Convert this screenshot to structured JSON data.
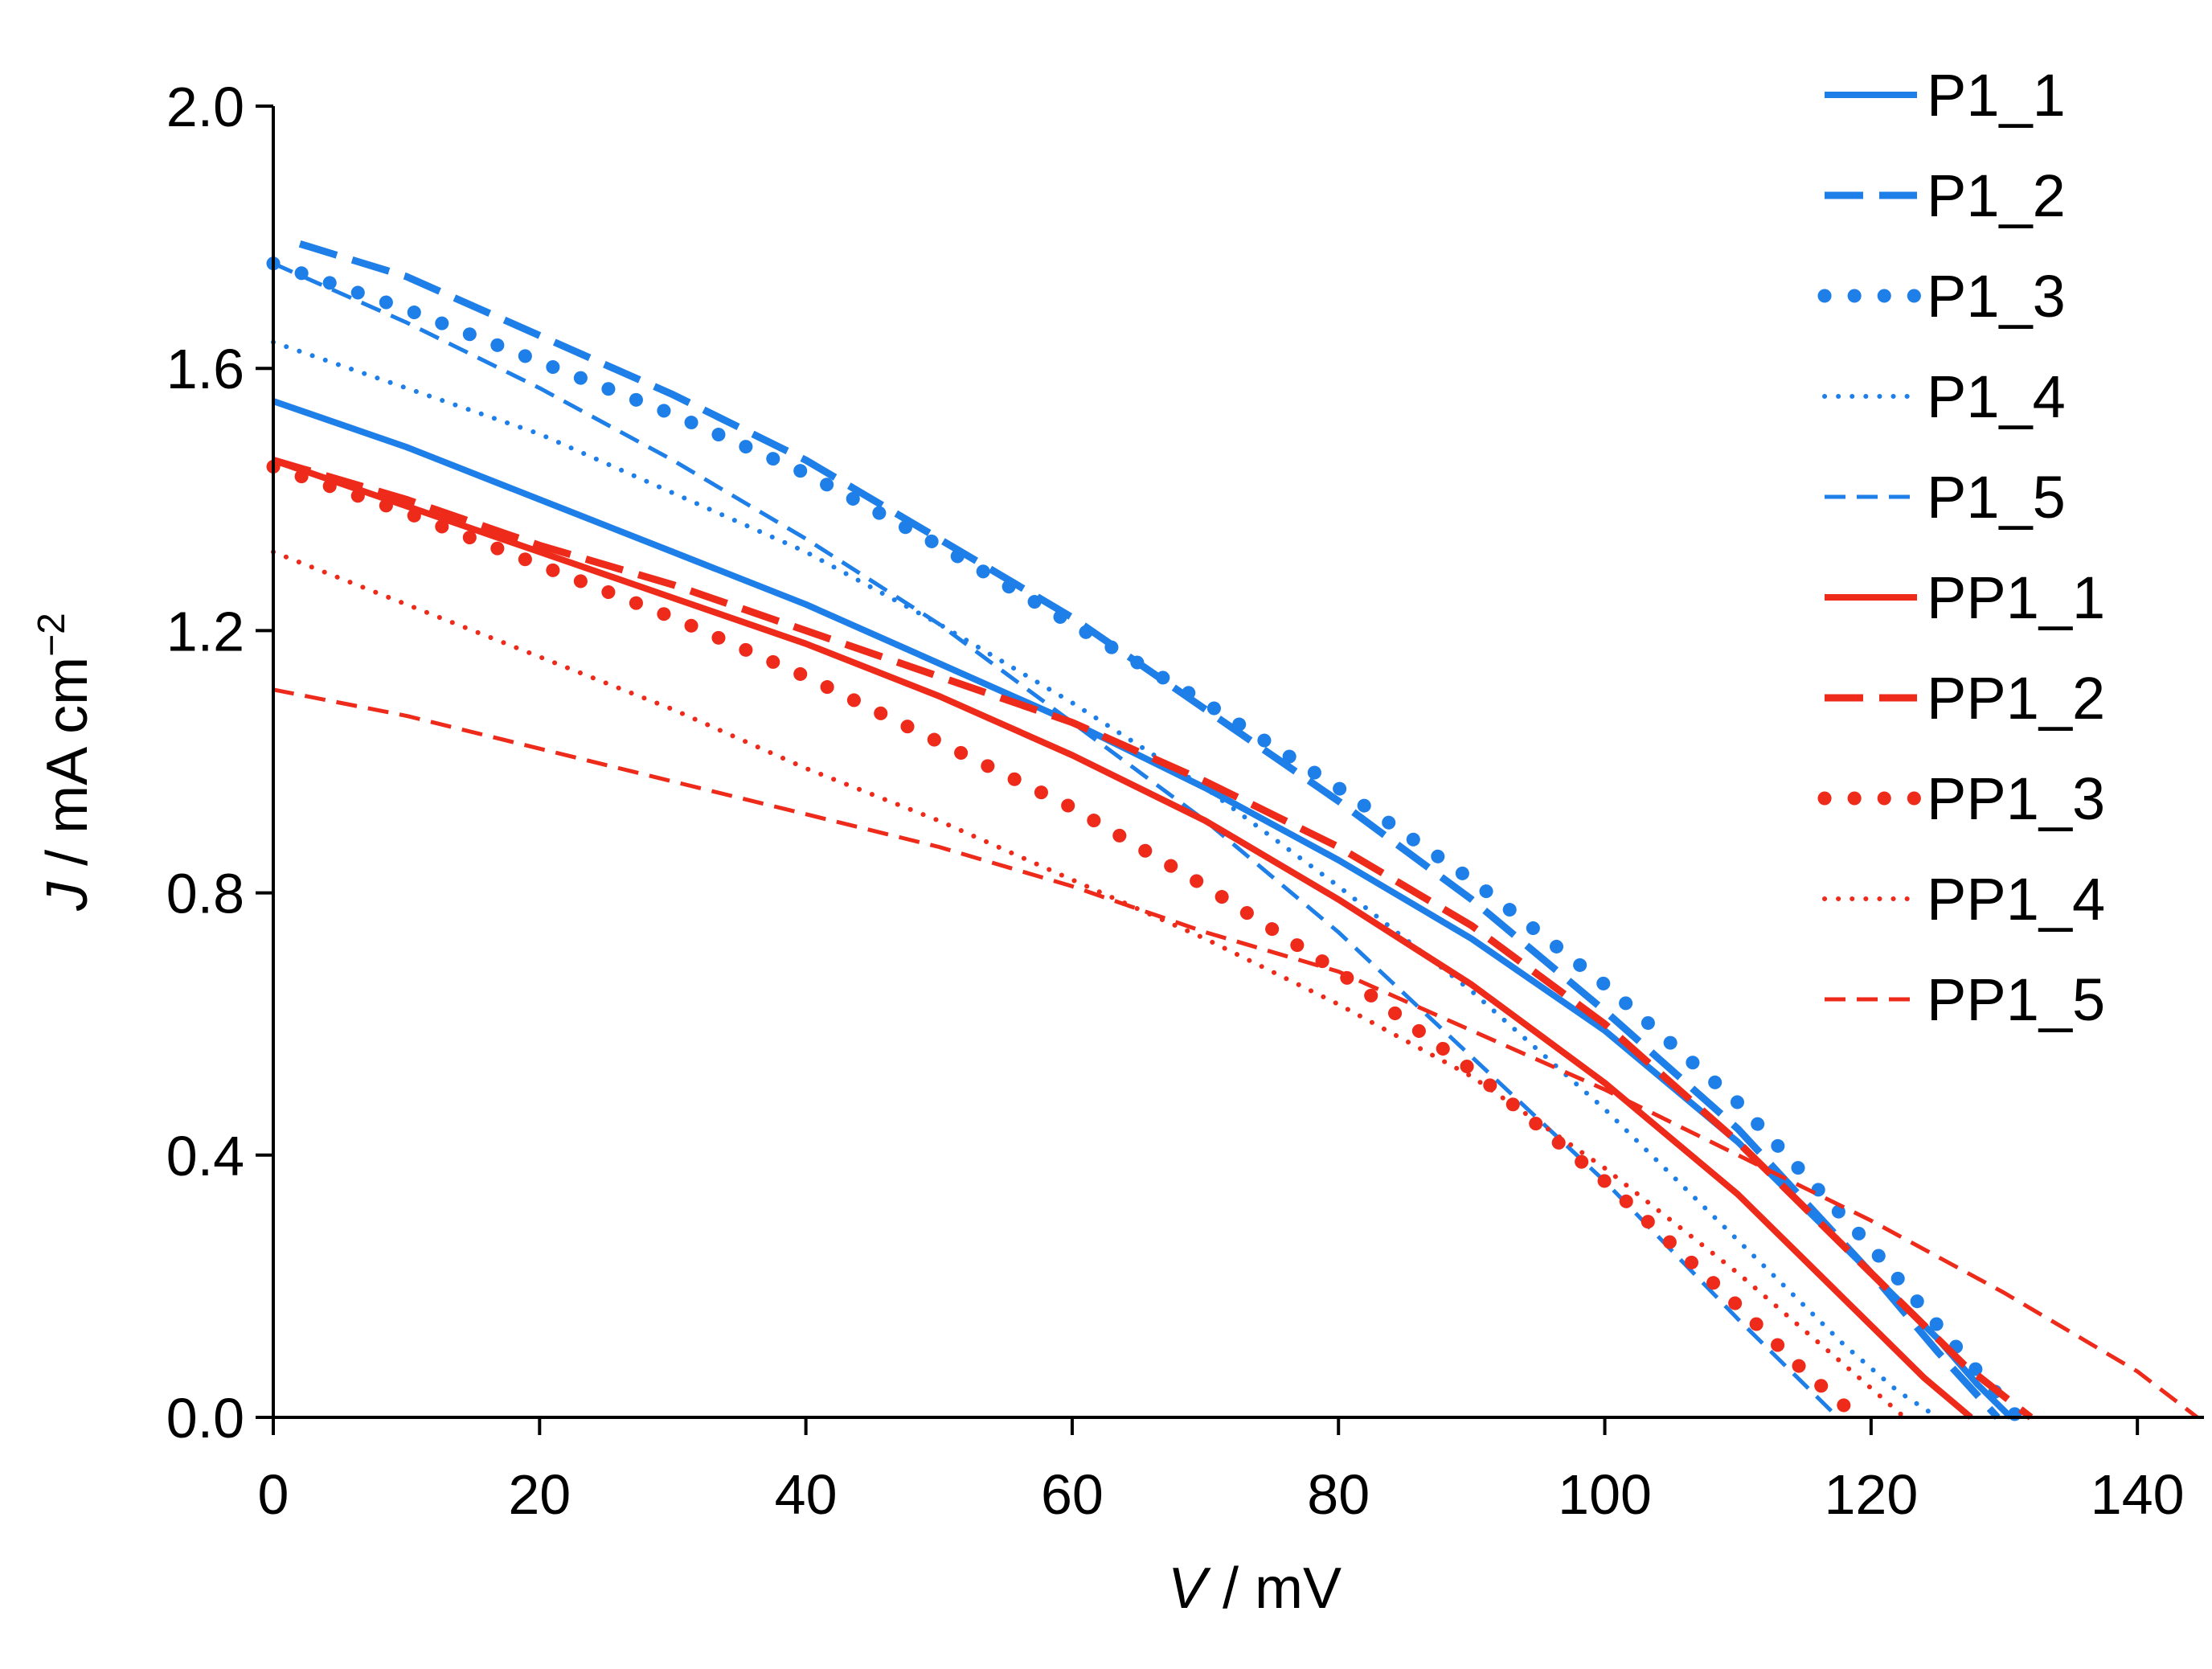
{
  "chart_data": {
    "type": "line",
    "title": "",
    "xlabel_var": "V",
    "xlabel_unit": " / mV",
    "ylabel_var": "J",
    "ylabel_unit": " / mA cm",
    "ylabel_exp": "−2",
    "xlim": [
      0,
      145
    ],
    "ylim": [
      0,
      2.0
    ],
    "xticks": [
      0,
      20,
      40,
      60,
      80,
      100,
      120,
      140
    ],
    "xtick_labels": [
      "0",
      "20",
      "40",
      "60",
      "80",
      "100",
      "120",
      "140"
    ],
    "yticks": [
      0,
      0.4,
      0.8,
      1.2,
      1.6,
      2.0
    ],
    "ytick_labels": [
      "0.0",
      "0.4",
      "0.8",
      "1.2",
      "1.6",
      "2.0"
    ],
    "grid": false,
    "legend_position": "right",
    "colors": {
      "blue": "#1f7fe8",
      "red": "#ee2a1b"
    },
    "series": [
      {
        "name": "P1_1",
        "color": "#1f7fe8",
        "style": "solid",
        "x": [
          0,
          10,
          20,
          30,
          40,
          50,
          60,
          70,
          80,
          90,
          100,
          110,
          120,
          125,
          128,
          130.5
        ],
        "y": [
          1.55,
          1.48,
          1.4,
          1.32,
          1.24,
          1.15,
          1.06,
          0.96,
          0.85,
          0.73,
          0.59,
          0.42,
          0.22,
          0.12,
          0.05,
          0.0
        ]
      },
      {
        "name": "P1_2",
        "color": "#1f7fe8",
        "style": "dashed",
        "x": [
          2,
          10,
          20,
          30,
          40,
          50,
          60,
          70,
          80,
          90,
          100,
          110,
          120,
          125,
          129.5
        ],
        "y": [
          1.79,
          1.74,
          1.65,
          1.56,
          1.46,
          1.34,
          1.22,
          1.08,
          0.94,
          0.79,
          0.62,
          0.44,
          0.22,
          0.1,
          0.0
        ]
      },
      {
        "name": "P1_3",
        "color": "#1f7fe8",
        "style": "dotted-heavy",
        "x": [
          0,
          10,
          20,
          30,
          40,
          50,
          60,
          70,
          80,
          90,
          100,
          110,
          120,
          125,
          131
        ],
        "y": [
          1.76,
          1.69,
          1.61,
          1.53,
          1.44,
          1.33,
          1.21,
          1.09,
          0.96,
          0.82,
          0.66,
          0.48,
          0.26,
          0.14,
          0.0
        ]
      },
      {
        "name": "P1_4",
        "color": "#1f7fe8",
        "style": "dotted",
        "x": [
          0,
          10,
          20,
          30,
          40,
          50,
          60,
          70,
          80,
          90,
          100,
          110,
          118,
          122,
          125
        ],
        "y": [
          1.64,
          1.57,
          1.5,
          1.41,
          1.32,
          1.21,
          1.09,
          0.96,
          0.81,
          0.65,
          0.47,
          0.27,
          0.11,
          0.04,
          0.0
        ]
      },
      {
        "name": "P1_5",
        "color": "#1f7fe8",
        "style": "short-dash",
        "x": [
          0,
          10,
          20,
          30,
          40,
          50,
          60,
          70,
          80,
          90,
          100,
          110,
          115,
          117.5
        ],
        "y": [
          1.76,
          1.67,
          1.57,
          1.46,
          1.34,
          1.21,
          1.06,
          0.91,
          0.74,
          0.55,
          0.36,
          0.15,
          0.05,
          0.0
        ]
      },
      {
        "name": "PP1_1",
        "color": "#ee2a1b",
        "style": "solid",
        "x": [
          0,
          10,
          20,
          30,
          40,
          50,
          60,
          70,
          80,
          90,
          100,
          110,
          120,
          124,
          127.5
        ],
        "y": [
          1.46,
          1.39,
          1.32,
          1.25,
          1.18,
          1.1,
          1.01,
          0.91,
          0.79,
          0.66,
          0.51,
          0.34,
          0.14,
          0.06,
          0.0
        ]
      },
      {
        "name": "PP1_2",
        "color": "#ee2a1b",
        "style": "dashed",
        "x": [
          0,
          10,
          20,
          30,
          40,
          50,
          60,
          70,
          80,
          90,
          100,
          110,
          120,
          127,
          132
        ],
        "y": [
          1.46,
          1.4,
          1.33,
          1.27,
          1.2,
          1.13,
          1.06,
          0.97,
          0.87,
          0.75,
          0.6,
          0.42,
          0.22,
          0.08,
          0.0
        ]
      },
      {
        "name": "PP1_3",
        "color": "#ee2a1b",
        "style": "dotted-heavy",
        "x": [
          0,
          10,
          20,
          30,
          40,
          50,
          60,
          70,
          80,
          90,
          100,
          110,
          115,
          119
        ],
        "y": [
          1.45,
          1.38,
          1.3,
          1.22,
          1.13,
          1.03,
          0.93,
          0.81,
          0.68,
          0.53,
          0.36,
          0.17,
          0.07,
          0.0
        ]
      },
      {
        "name": "PP1_4",
        "color": "#ee2a1b",
        "style": "dotted",
        "x": [
          0,
          10,
          20,
          30,
          40,
          50,
          60,
          70,
          80,
          90,
          100,
          110,
          118,
          122.5
        ],
        "y": [
          1.32,
          1.24,
          1.16,
          1.08,
          0.99,
          0.91,
          0.82,
          0.73,
          0.63,
          0.52,
          0.38,
          0.22,
          0.08,
          0.0
        ]
      },
      {
        "name": "PP1_5",
        "color": "#ee2a1b",
        "style": "short-dash",
        "x": [
          0,
          10,
          20,
          30,
          40,
          50,
          60,
          70,
          80,
          90,
          100,
          110,
          120,
          130,
          140,
          144.5
        ],
        "y": [
          1.11,
          1.07,
          1.02,
          0.97,
          0.92,
          0.87,
          0.81,
          0.74,
          0.68,
          0.59,
          0.5,
          0.4,
          0.3,
          0.19,
          0.07,
          0.0
        ]
      }
    ]
  }
}
